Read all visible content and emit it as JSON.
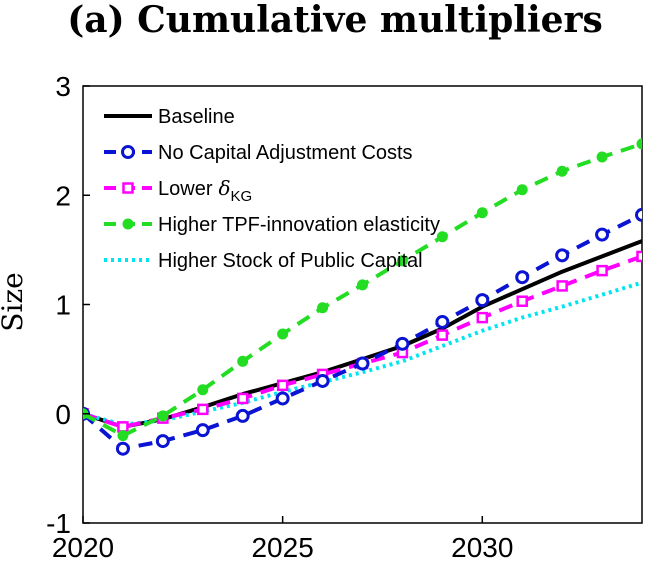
{
  "chart_data": {
    "type": "line",
    "title": "(a) Cumulative multipliers",
    "xlabel": "",
    "ylabel": "Size",
    "xlim": [
      2020,
      2034
    ],
    "ylim": [
      -1,
      3
    ],
    "xticks": [
      2020,
      2025,
      2030
    ],
    "yticks": [
      -1,
      0,
      1,
      2,
      3
    ],
    "grid": false,
    "legend_position": "top-left",
    "series": [
      {
        "name": "Baseline",
        "color": "#000000",
        "linestyle": "solid",
        "marker": "none",
        "x": [
          2020,
          2021,
          2022,
          2023,
          2024,
          2025,
          2026,
          2027,
          2028,
          2029,
          2030,
          2031,
          2032,
          2033,
          2034
        ],
        "y": [
          0,
          -0.12,
          -0.05,
          0.06,
          0.18,
          0.28,
          0.38,
          0.5,
          0.62,
          0.78,
          0.98,
          1.14,
          1.3,
          1.44,
          1.58
        ]
      },
      {
        "name": "No Capital Adjustment Costs",
        "color": "#0a14d2",
        "linestyle": "dashed",
        "marker": "circle",
        "x": [
          2020,
          2021,
          2022,
          2023,
          2024,
          2025,
          2026,
          2027,
          2028,
          2029,
          2030,
          2031,
          2032,
          2033,
          2034
        ],
        "y": [
          0,
          -0.32,
          -0.25,
          -0.15,
          -0.02,
          0.14,
          0.3,
          0.46,
          0.64,
          0.84,
          1.04,
          1.25,
          1.45,
          1.64,
          1.82
        ]
      },
      {
        "name": "Lower",
        "name_symbol": "δ",
        "name_subscript": "KG",
        "color": "#ff00ff",
        "linestyle": "dashed",
        "marker": "square",
        "x": [
          2020,
          2021,
          2022,
          2023,
          2024,
          2025,
          2026,
          2027,
          2028,
          2029,
          2030,
          2031,
          2032,
          2033,
          2034
        ],
        "y": [
          0,
          -0.12,
          -0.04,
          0.04,
          0.14,
          0.26,
          0.36,
          0.46,
          0.56,
          0.72,
          0.88,
          1.03,
          1.17,
          1.31,
          1.44
        ]
      },
      {
        "name": "Higher TPF-innovation elasticity",
        "color": "#22dd22",
        "linestyle": "dashed",
        "marker": "dot",
        "x": [
          2020,
          2021,
          2022,
          2023,
          2024,
          2025,
          2026,
          2027,
          2028,
          2029,
          2030,
          2031,
          2032,
          2033,
          2034
        ],
        "y": [
          0,
          -0.2,
          -0.02,
          0.22,
          0.48,
          0.73,
          0.97,
          1.18,
          1.4,
          1.62,
          1.84,
          2.05,
          2.22,
          2.35,
          2.47
        ]
      },
      {
        "name": "Higher Stock of Public Capital",
        "color": "#00e5f0",
        "linestyle": "dotted",
        "marker": "none",
        "x": [
          2020,
          2021,
          2022,
          2023,
          2024,
          2025,
          2026,
          2027,
          2028,
          2029,
          2030,
          2031,
          2032,
          2033,
          2034
        ],
        "y": [
          0,
          -0.1,
          -0.06,
          0.02,
          0.1,
          0.2,
          0.29,
          0.38,
          0.48,
          0.62,
          0.76,
          0.88,
          0.98,
          1.09,
          1.2
        ]
      }
    ]
  }
}
